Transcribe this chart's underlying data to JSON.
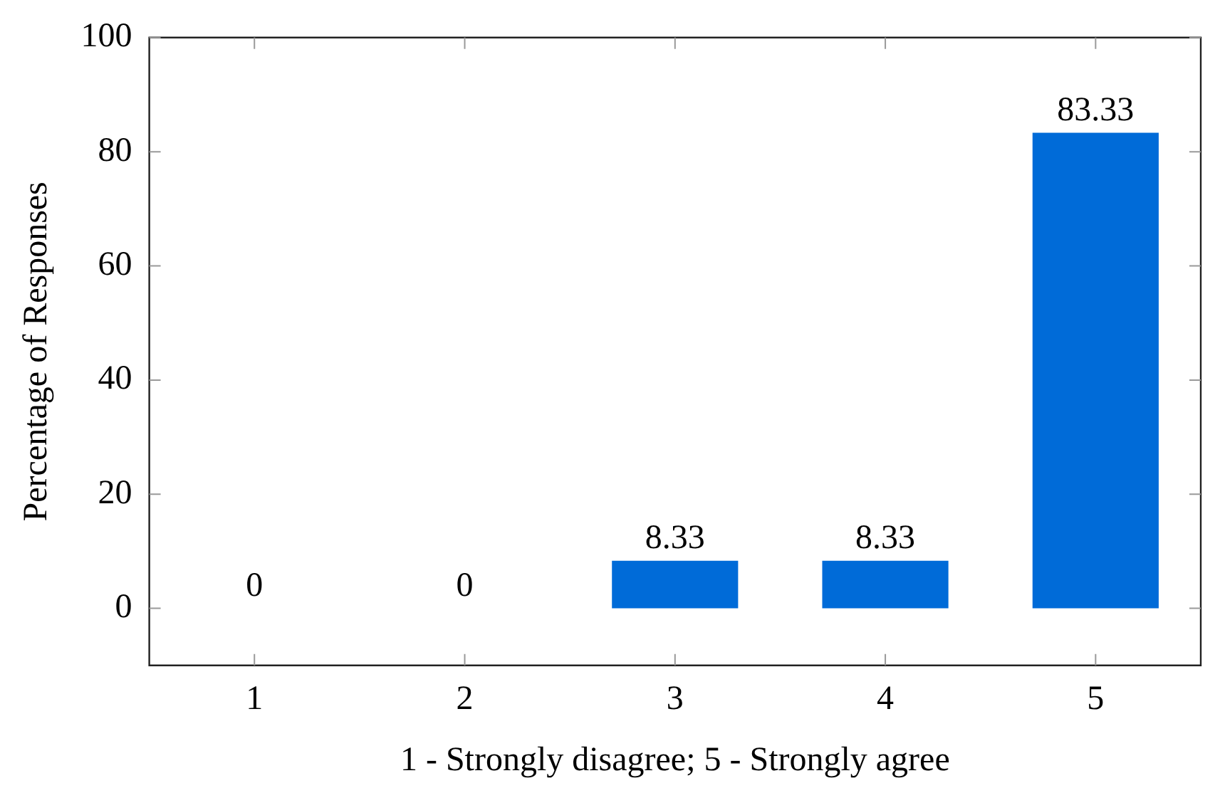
{
  "chart_data": {
    "type": "bar",
    "xlabel": "1 - Strongly disagree; 5 - Strongly agree",
    "ylabel": "Percentage of Responses",
    "categories": [
      "1",
      "2",
      "3",
      "4",
      "5"
    ],
    "values": [
      0,
      0,
      8.33,
      8.33,
      83.33
    ],
    "color": "#006bd8",
    "ylim": [
      -10,
      100
    ],
    "yticks": [
      0,
      20,
      40,
      60,
      80,
      100
    ],
    "grid": false,
    "legend": false,
    "data_labels": true
  }
}
